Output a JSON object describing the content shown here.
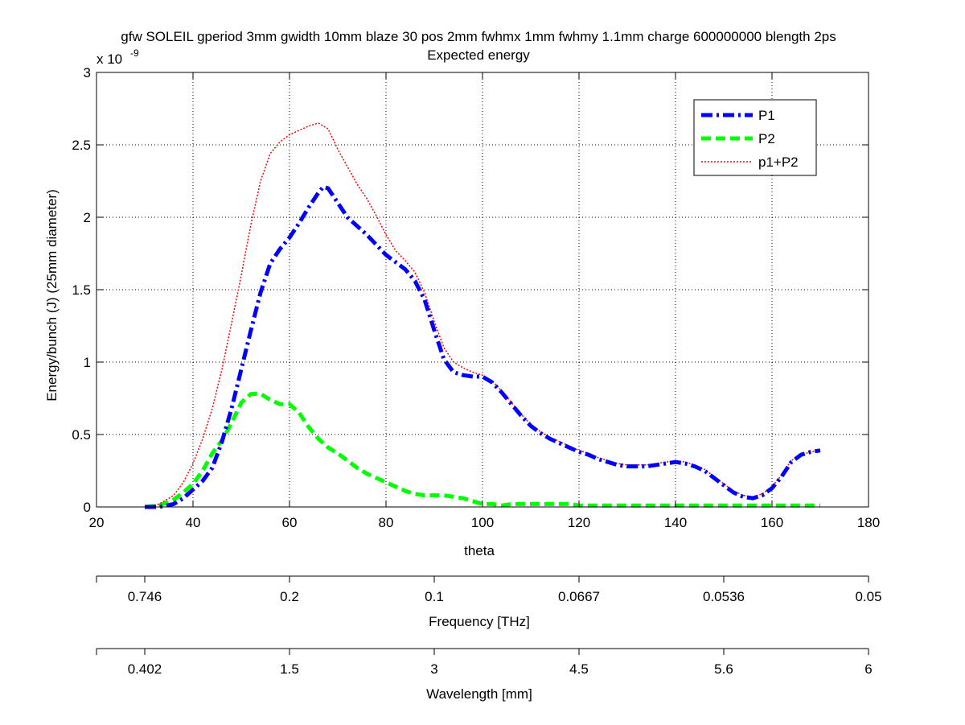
{
  "colors": {
    "P1": "#0000ff",
    "P2": "#00ff00",
    "sum": "#ff0000",
    "axis": "#000000",
    "grid": "#000000",
    "background": "#ffffff"
  },
  "chart_data": {
    "type": "line",
    "title": "gfw SOLEIL gperiod 3mm gwidth 10mm blaze 30 pos 2mm fwhmx 1mm fwhmy 1.1mm charge 600000000 blength 2ps",
    "subtitle": "Expected energy",
    "xlabel": "theta",
    "ylabel": "Energy/bunch (J) (25mm diameter)",
    "y_multiplier": "x 10",
    "y_multiplier_exp": "-9",
    "xlim": [
      20,
      180
    ],
    "ylim": [
      0,
      3
    ],
    "xticks": [
      20,
      40,
      60,
      80,
      100,
      120,
      140,
      160,
      180
    ],
    "yticks": [
      0,
      0.5,
      1,
      1.5,
      2,
      2.5,
      3
    ],
    "ytick_labels": [
      "0",
      "0.5",
      "1",
      "1.5",
      "2",
      "2.5",
      "3"
    ],
    "grid": true,
    "legend_position": "top-right",
    "series": [
      {
        "name": "P1",
        "style": "dash-dot",
        "x": [
          30,
          33,
          36,
          38,
          40,
          42,
          44,
          46,
          48,
          50,
          52,
          54,
          56,
          58,
          60,
          62,
          64,
          66,
          67,
          68,
          70,
          72,
          74,
          76,
          78,
          80,
          82,
          84,
          86,
          88,
          90,
          92,
          94,
          96,
          98,
          100,
          102,
          104,
          106,
          108,
          110,
          112,
          114,
          116,
          118,
          120,
          122,
          124,
          126,
          128,
          130,
          132,
          134,
          136,
          138,
          140,
          142,
          144,
          146,
          148,
          150,
          152,
          154,
          156,
          158,
          160,
          162,
          164,
          166,
          168,
          170
        ],
        "y": [
          0,
          0,
          0.02,
          0.06,
          0.12,
          0.18,
          0.27,
          0.45,
          0.68,
          0.95,
          1.22,
          1.48,
          1.68,
          1.78,
          1.86,
          1.96,
          2.07,
          2.17,
          2.21,
          2.2,
          2.1,
          2.0,
          1.94,
          1.88,
          1.81,
          1.74,
          1.69,
          1.64,
          1.56,
          1.43,
          1.22,
          1.02,
          0.93,
          0.91,
          0.9,
          0.9,
          0.86,
          0.79,
          0.71,
          0.63,
          0.56,
          0.51,
          0.47,
          0.44,
          0.41,
          0.38,
          0.36,
          0.33,
          0.31,
          0.29,
          0.28,
          0.28,
          0.28,
          0.29,
          0.3,
          0.31,
          0.3,
          0.28,
          0.25,
          0.2,
          0.15,
          0.1,
          0.07,
          0.06,
          0.08,
          0.13,
          0.21,
          0.31,
          0.36,
          0.38,
          0.39
        ]
      },
      {
        "name": "P2",
        "style": "dashed",
        "x": [
          30,
          33,
          36,
          38,
          40,
          42,
          44,
          46,
          48,
          50,
          52,
          54,
          56,
          58,
          60,
          62,
          64,
          66,
          68,
          70,
          72,
          74,
          76,
          78,
          80,
          82,
          84,
          86,
          88,
          90,
          92,
          94,
          96,
          98,
          100,
          102,
          104,
          106,
          108,
          110,
          112,
          114,
          116,
          118,
          120,
          125,
          130,
          140,
          150,
          160,
          170
        ],
        "y": [
          0,
          0.01,
          0.05,
          0.1,
          0.16,
          0.25,
          0.37,
          0.46,
          0.58,
          0.72,
          0.78,
          0.78,
          0.74,
          0.71,
          0.71,
          0.65,
          0.55,
          0.47,
          0.41,
          0.37,
          0.32,
          0.27,
          0.23,
          0.2,
          0.17,
          0.14,
          0.11,
          0.09,
          0.08,
          0.08,
          0.08,
          0.07,
          0.06,
          0.04,
          0.02,
          0.02,
          0.01,
          0.02,
          0.02,
          0.02,
          0.02,
          0.02,
          0.02,
          0.02,
          0.01,
          0.01,
          0.01,
          0.01,
          0.01,
          0.01,
          0.01
        ]
      },
      {
        "name": "p1+P2",
        "style": "dotted",
        "x": [
          30,
          33,
          36,
          38,
          40,
          42,
          44,
          46,
          48,
          50,
          52,
          54,
          56,
          58,
          60,
          62,
          64,
          66,
          68,
          70,
          72,
          74,
          76,
          78,
          80,
          82,
          84,
          86,
          88,
          90,
          92,
          94,
          96,
          98,
          100,
          102,
          104,
          106,
          108,
          110,
          112,
          114,
          116,
          118,
          120,
          122,
          124,
          126,
          128,
          130,
          132,
          134,
          136,
          138,
          140,
          142,
          144,
          146,
          148,
          150,
          152,
          154,
          156,
          158,
          160,
          162,
          164,
          166,
          168,
          170
        ],
        "y": [
          0,
          0.02,
          0.08,
          0.17,
          0.3,
          0.47,
          0.68,
          0.95,
          1.27,
          1.6,
          1.95,
          2.25,
          2.44,
          2.52,
          2.57,
          2.6,
          2.63,
          2.65,
          2.61,
          2.47,
          2.35,
          2.23,
          2.13,
          2.01,
          1.88,
          1.77,
          1.7,
          1.62,
          1.48,
          1.28,
          1.1,
          1.0,
          0.96,
          0.93,
          0.91,
          0.87,
          0.8,
          0.72,
          0.64,
          0.57,
          0.52,
          0.48,
          0.45,
          0.42,
          0.39,
          0.37,
          0.34,
          0.32,
          0.3,
          0.29,
          0.29,
          0.29,
          0.3,
          0.31,
          0.32,
          0.31,
          0.29,
          0.26,
          0.21,
          0.16,
          0.11,
          0.08,
          0.07,
          0.09,
          0.14,
          0.22,
          0.32,
          0.36,
          0.38,
          0.39
        ]
      }
    ],
    "secondary_axes": [
      {
        "label": "Frequency [THz]",
        "tick_labels": [
          "0.746",
          "0.2",
          "0.1",
          "0.0667",
          "0.0536",
          "0.05"
        ]
      },
      {
        "label": "Wavelength [mm]",
        "tick_labels": [
          "0.402",
          "1.5",
          "3",
          "4.5",
          "5.6",
          "6"
        ]
      }
    ]
  }
}
